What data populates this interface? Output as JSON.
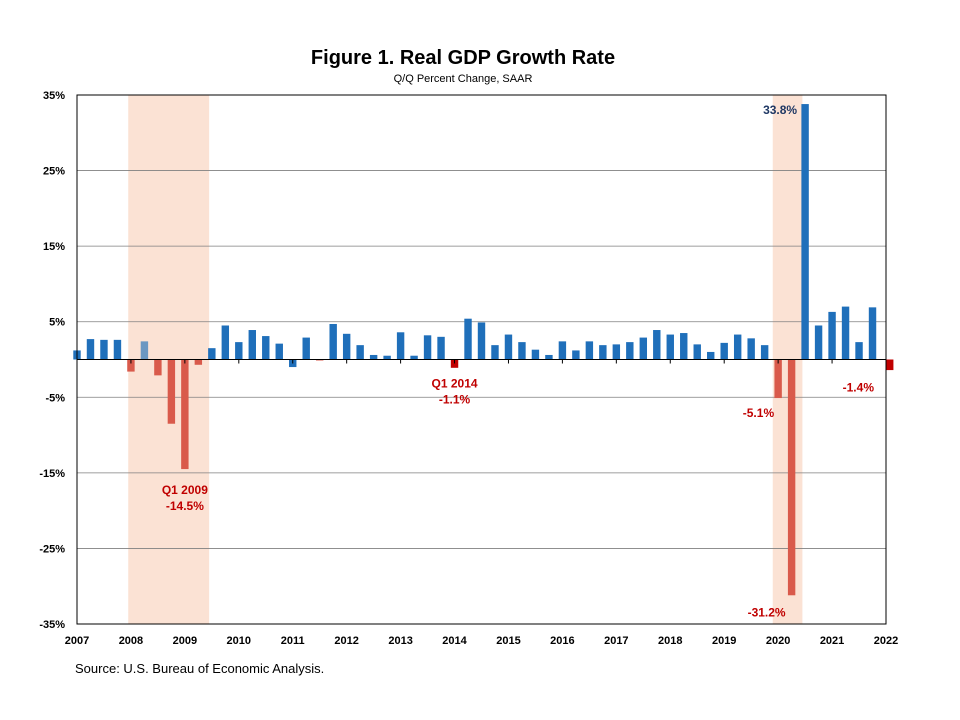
{
  "chart_data": {
    "type": "bar",
    "title": "Figure 1. Real GDP Growth Rate",
    "subtitle": "Q/Q Percent Change, SAAR",
    "ylim": [
      -35,
      35
    ],
    "yticks": [
      35,
      25,
      15,
      5,
      -5,
      -15,
      -25,
      -35
    ],
    "ytick_labels": [
      "35%",
      "25%",
      "15%",
      "5%",
      "-5%",
      "-15%",
      "-25%",
      "-35%"
    ],
    "year_labels": [
      "2007",
      "2008",
      "2009",
      "2010",
      "2011",
      "2012",
      "2013",
      "2014",
      "2015",
      "2016",
      "2017",
      "2018",
      "2019",
      "2020",
      "2021",
      "2022"
    ],
    "start_year": 2007,
    "grid": true,
    "recession_periods": [
      {
        "start_quarter_index": 3.8,
        "end_quarter_index": 9.8
      },
      {
        "start_quarter_index": 51.6,
        "end_quarter_index": 53.8
      }
    ],
    "values": [
      1.2,
      2.7,
      2.6,
      2.6,
      -1.6,
      2.4,
      -2.1,
      -8.5,
      -14.5,
      -0.7,
      1.5,
      4.5,
      2.3,
      3.9,
      3.1,
      2.1,
      -1.0,
      2.9,
      -0.1,
      4.7,
      3.4,
      1.9,
      0.6,
      0.5,
      3.6,
      0.5,
      3.2,
      3.0,
      -1.1,
      5.4,
      4.9,
      1.9,
      3.3,
      2.3,
      1.3,
      0.6,
      2.4,
      1.2,
      2.4,
      1.9,
      2.0,
      2.3,
      2.9,
      3.9,
      3.3,
      3.5,
      2.0,
      1.0,
      2.2,
      3.3,
      2.8,
      1.9,
      -5.1,
      -31.2,
      33.8,
      4.5,
      6.3,
      7.0,
      2.3,
      6.9,
      -1.4
    ],
    "colors": {
      "positive": "#1f6fba",
      "negative": "#d95a4b",
      "positive_recession": "#6b97c2",
      "negative_latest": "#c00000",
      "recession_shade": "#fbe2d4",
      "grid": "#7f7f7f"
    },
    "annotations": [
      {
        "quarter_index": 8,
        "text": [
          "Q1 2009",
          "-14.5%"
        ],
        "color": "#c00000"
      },
      {
        "quarter_index": 28,
        "text": [
          "Q1 2014",
          "-1.1%"
        ],
        "color": "#c00000"
      },
      {
        "quarter_index": 52,
        "text": [
          "-5.1%"
        ],
        "color": "#c00000"
      },
      {
        "quarter_index": 53,
        "text": [
          "-31.2%"
        ],
        "color": "#c00000"
      },
      {
        "quarter_index": 54,
        "text": [
          "33.8%"
        ],
        "color": "#1f3864"
      },
      {
        "quarter_index": 60,
        "text": [
          "-1.4%"
        ],
        "color": "#c00000"
      }
    ]
  },
  "source": "Source: U.S. Bureau of Economic Analysis."
}
